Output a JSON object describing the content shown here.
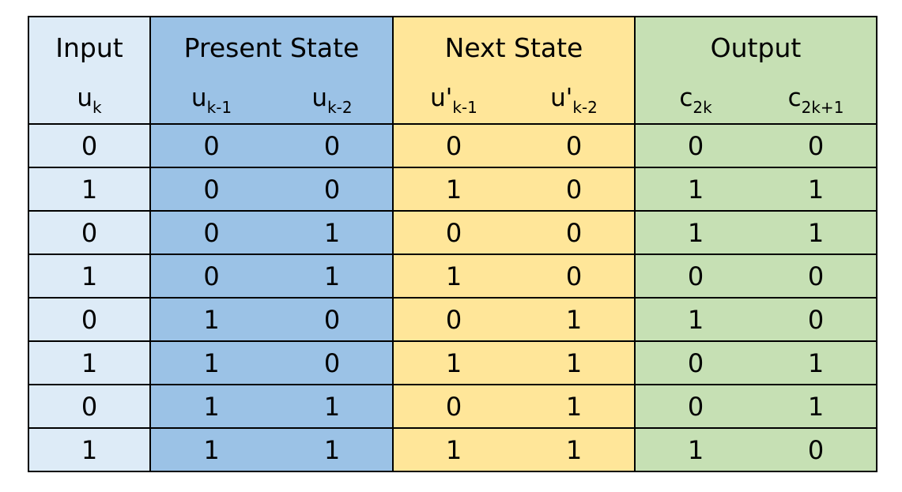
{
  "table": {
    "colors": {
      "input": "#ddebf7",
      "present_state": "#9bc2e6",
      "next_state": "#ffe699",
      "output": "#c6e0b4"
    },
    "headers": {
      "input": "Input",
      "present_state": "Present State",
      "next_state": "Next State",
      "output": "Output"
    },
    "variables": {
      "u_k": {
        "base": "u",
        "sub": "k"
      },
      "u_k1": {
        "base": "u",
        "sub": "k-1"
      },
      "u_k2": {
        "base": "u",
        "sub": "k-2"
      },
      "up_k1": {
        "base": "u'",
        "sub": "k-1"
      },
      "up_k2": {
        "base": "u'",
        "sub": "k-2"
      },
      "c_2k": {
        "base": "c",
        "sub": "2k"
      },
      "c_2k1": {
        "base": "c",
        "sub": "2k+1"
      }
    },
    "rows": [
      [
        "0",
        "0",
        "0",
        "0",
        "0",
        "0",
        "0"
      ],
      [
        "1",
        "0",
        "0",
        "1",
        "0",
        "1",
        "1"
      ],
      [
        "0",
        "0",
        "1",
        "0",
        "0",
        "1",
        "1"
      ],
      [
        "1",
        "0",
        "1",
        "1",
        "0",
        "0",
        "0"
      ],
      [
        "0",
        "1",
        "0",
        "0",
        "1",
        "1",
        "0"
      ],
      [
        "1",
        "1",
        "0",
        "1",
        "1",
        "0",
        "1"
      ],
      [
        "0",
        "1",
        "1",
        "0",
        "1",
        "0",
        "1"
      ],
      [
        "1",
        "1",
        "1",
        "1",
        "1",
        "1",
        "0"
      ]
    ]
  }
}
